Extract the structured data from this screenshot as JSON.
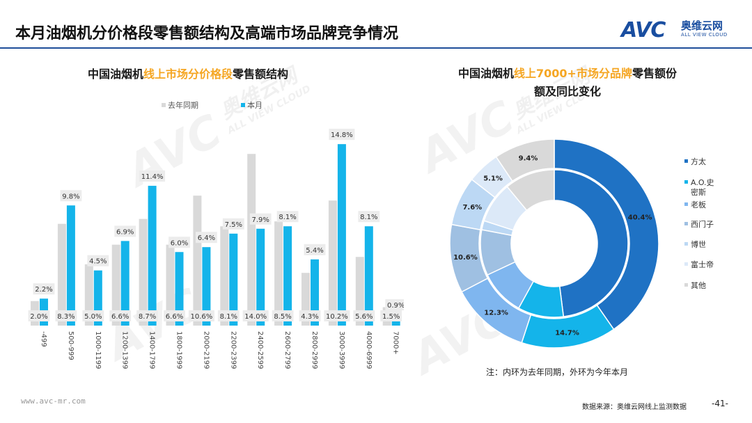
{
  "header": {
    "title": "本月油烟机分价格段零售额结构及高端市场品牌竞争情况",
    "logo_avc": "AVC",
    "logo_cn": "奥维云网",
    "logo_en": "ALL VIEW CLOUD"
  },
  "watermark": {
    "brand": "AVC",
    "cn": "奥维云网",
    "en": "ALL VIEW CLOUD"
  },
  "footer": {
    "note": "注：内环为去年同期，外环为今年本月",
    "site": "www.avc-mr.com",
    "source": "数据来源：奥维云网线上监测数据",
    "page": "-41-"
  },
  "colors": {
    "gray_bar": "#d9d9d9",
    "blue_bar": "#14b4ea",
    "label_box": "#ececec",
    "highlight": "#f5a623",
    "brand_blue": "#1a4ea0"
  },
  "chart_data": [
    {
      "type": "bar",
      "title_prefix": "中国油烟机",
      "title_highlight": "线上市场分价格段",
      "title_suffix": "零售额结构",
      "categories": [
        "-499",
        "500-999",
        "1000-1199",
        "1200-1399",
        "1400-1799",
        "1800-1999",
        "2000-2199",
        "2200-2399",
        "2400-2599",
        "2600-2799",
        "2800-2999",
        "3000-3999",
        "4000-6999",
        "7000+"
      ],
      "series": [
        {
          "name": "去年同期",
          "color": "#d9d9d9",
          "values": [
            2.0,
            8.3,
            5.0,
            6.6,
            8.7,
            6.6,
            10.6,
            8.1,
            14.0,
            8.5,
            4.3,
            10.2,
            5.6,
            1.5
          ],
          "labels": [
            "2.0%",
            "8.3%",
            "5.0%",
            "6.6%",
            "8.7%",
            "6.6%",
            "10.6%",
            "8.1%",
            "14.0%",
            "8.5%",
            "4.3%",
            "10.2%",
            "5.6%",
            "1.5%"
          ]
        },
        {
          "name": "本月",
          "color": "#14b4ea",
          "values": [
            2.2,
            9.8,
            4.5,
            6.9,
            11.4,
            6.0,
            6.4,
            7.5,
            7.9,
            8.1,
            5.4,
            14.8,
            8.1,
            0.9
          ],
          "labels": [
            "2.2%",
            "9.8%",
            "4.5%",
            "6.9%",
            "11.4%",
            "6.0%",
            "6.4%",
            "7.5%",
            "7.9%",
            "8.1%",
            "5.4%",
            "14.8%",
            "8.1%",
            "0.9%"
          ]
        }
      ],
      "ylim": [
        0,
        16
      ],
      "legend": "top"
    },
    {
      "type": "pie",
      "variant": "double-donut",
      "title_line1_prefix": "中国油烟机",
      "title_line1_highlight": "线上7000+市场分品牌",
      "title_line1_suffix": "零售额份",
      "title_line2": "额及同比变化",
      "legend": [
        {
          "name": "方太",
          "color": "#1f72c4"
        },
        {
          "name": "A.O.史密斯",
          "color": "#14b4ea"
        },
        {
          "name": "老板",
          "color": "#7fb6ef"
        },
        {
          "name": "西门子",
          "color": "#9fc0e2"
        },
        {
          "name": "博世",
          "color": "#bcd8f4"
        },
        {
          "name": "富士帝",
          "color": "#dce9f8"
        },
        {
          "name": "其他",
          "color": "#d9d9d9"
        }
      ],
      "outer": {
        "label": "今年本月",
        "values": [
          40.4,
          14.7,
          12.3,
          10.6,
          7.6,
          5.1,
          9.4
        ],
        "labels": [
          "40.4%",
          "14.7%",
          "12.3%",
          "10.6%",
          "7.6%",
          "5.1%",
          "9.4%"
        ]
      },
      "inner": {
        "label": "去年同期",
        "values": [
          48.0,
          10.0,
          10.0,
          10.0,
          2.0,
          9.0,
          11.0
        ]
      }
    }
  ]
}
